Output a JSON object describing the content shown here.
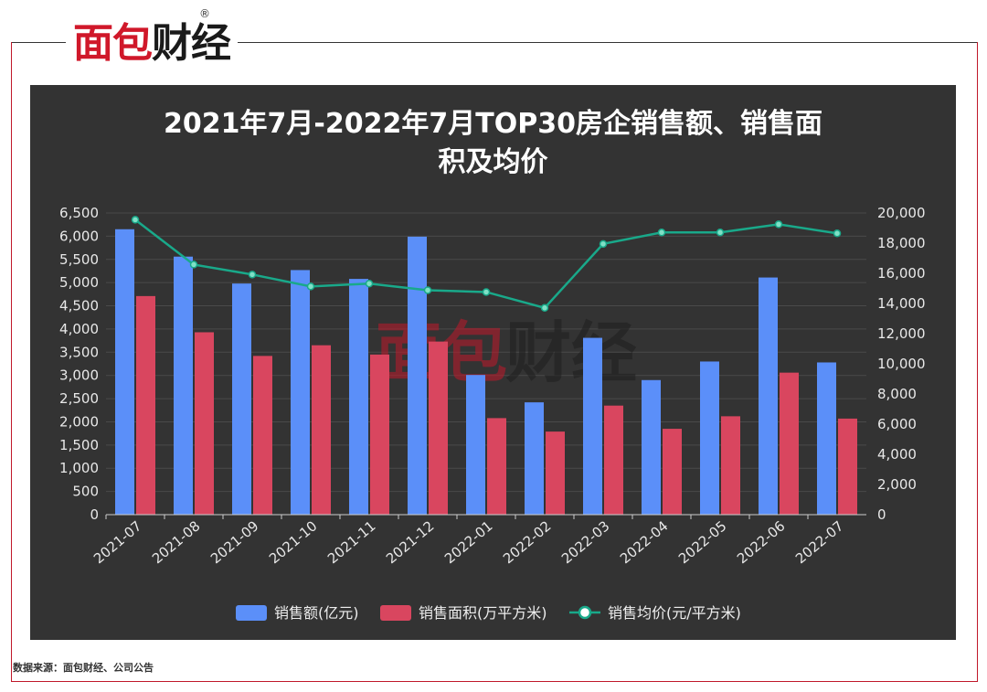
{
  "brand": {
    "logo_text": "面包财经",
    "registered_mark": "®"
  },
  "footer": {
    "source": "数据来源：面包财经、公司公告"
  },
  "colors": {
    "sales": "#5b8ff9",
    "area": "#d9465f",
    "price": "#19a98a",
    "panel": "#333333"
  },
  "chart_data": {
    "type": "bar",
    "title_lines": [
      "2021年7月-2022年7月TOP30房企销售额、销售面",
      "积及均价"
    ],
    "categories": [
      "2021-07",
      "2021-08",
      "2021-09",
      "2021-10",
      "2021-11",
      "2021-12",
      "2022-01",
      "2022-02",
      "2022-03",
      "2022-04",
      "2022-05",
      "2022-06",
      "2022-07"
    ],
    "series": [
      {
        "name": "销售额(亿元)",
        "kind": "bar",
        "axis": "left",
        "values": [
          6150,
          5560,
          4980,
          5270,
          5080,
          5990,
          3010,
          2420,
          3810,
          2900,
          3300,
          5110,
          3280
        ]
      },
      {
        "name": "销售面积(万平方米)",
        "kind": "bar",
        "axis": "left",
        "values": [
          4710,
          3930,
          3420,
          3650,
          3450,
          3730,
          2080,
          1790,
          2350,
          1850,
          2120,
          3060,
          2070
        ]
      },
      {
        "name": "销售均价(元/平方米)",
        "kind": "line",
        "axis": "right",
        "values": [
          19550,
          16580,
          15920,
          15130,
          15320,
          14880,
          14760,
          13710,
          17950,
          18710,
          18710,
          19250,
          18650
        ]
      }
    ],
    "y_left": {
      "min": 0,
      "max": 6500,
      "ticks": [
        "0",
        "500",
        "1,000",
        "1,500",
        "2,000",
        "2,500",
        "3,000",
        "3,500",
        "4,000",
        "4,500",
        "5,000",
        "5,500",
        "6,000",
        "6,500"
      ]
    },
    "y_right": {
      "min": 0,
      "max": 20000,
      "ticks": [
        "0",
        "2,000",
        "4,000",
        "6,000",
        "8,000",
        "10,000",
        "12,000",
        "14,000",
        "16,000",
        "18,000",
        "20,000"
      ]
    },
    "legend_position": "bottom",
    "grid": true
  }
}
